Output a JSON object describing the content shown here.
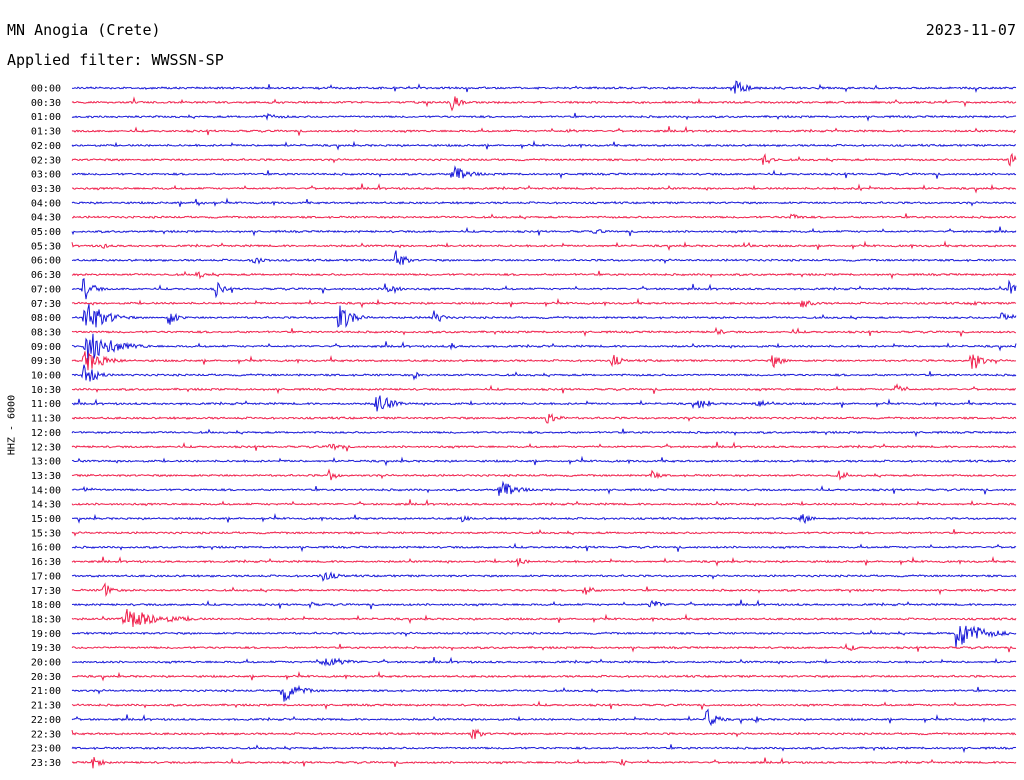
{
  "header": {
    "station": "MN Anogia (Crete)",
    "date": "2023-11-07",
    "filter": "Applied filter: WWSSN-SP"
  },
  "chart_data": {
    "type": "line",
    "ylabel": "HHZ - 6000",
    "row_labels": [
      "00:00",
      "00:30",
      "01:00",
      "01:30",
      "02:00",
      "02:30",
      "03:00",
      "03:30",
      "04:00",
      "04:30",
      "05:00",
      "05:30",
      "06:00",
      "06:30",
      "07:00",
      "07:30",
      "08:00",
      "08:30",
      "09:00",
      "09:30",
      "10:00",
      "10:30",
      "11:00",
      "11:30",
      "12:00",
      "12:30",
      "13:00",
      "13:30",
      "14:00",
      "14:30",
      "15:00",
      "15:30",
      "16:00",
      "16:30",
      "17:00",
      "17:30",
      "18:00",
      "18:30",
      "19:00",
      "19:30",
      "20:00",
      "20:30",
      "21:00",
      "21:30",
      "22:00",
      "22:30",
      "23:00",
      "23:30"
    ],
    "series_colors": [
      "#1818d8",
      "#f0204c"
    ],
    "events": [
      {
        "row": 0,
        "at": 0.7,
        "amp": 9,
        "dur": 0.03
      },
      {
        "row": 1,
        "at": 0.4,
        "amp": 10,
        "dur": 0.015
      },
      {
        "row": 2,
        "at": 0.2,
        "amp": 3,
        "dur": 0.06
      },
      {
        "row": 3,
        "at": 0.52,
        "amp": 2,
        "dur": 0.05
      },
      {
        "row": 5,
        "at": 0.73,
        "amp": 8,
        "dur": 0.02
      },
      {
        "row": 5,
        "at": 0.99,
        "amp": 10,
        "dur": 0.02
      },
      {
        "row": 6,
        "at": 0.4,
        "amp": 9,
        "dur": 0.04
      },
      {
        "row": 7,
        "at": 0.83,
        "amp": 5,
        "dur": 0.01
      },
      {
        "row": 8,
        "at": 0.13,
        "amp": 7,
        "dur": 0.01
      },
      {
        "row": 9,
        "at": 0.76,
        "amp": 5,
        "dur": 0.02
      },
      {
        "row": 10,
        "at": 0.55,
        "amp": 3,
        "dur": 0.03
      },
      {
        "row": 11,
        "at": 0.71,
        "amp": 5,
        "dur": 0.02
      },
      {
        "row": 11,
        "at": 0.03,
        "amp": 5,
        "dur": 0.01
      },
      {
        "row": 12,
        "at": 0.34,
        "amp": 12,
        "dur": 0.02
      },
      {
        "row": 12,
        "at": 0.19,
        "amp": 7,
        "dur": 0.02
      },
      {
        "row": 13,
        "at": 0.13,
        "amp": 5,
        "dur": 0.02
      },
      {
        "row": 14,
        "at": 0.01,
        "amp": 14,
        "dur": 0.02
      },
      {
        "row": 14,
        "at": 0.15,
        "amp": 8,
        "dur": 0.02
      },
      {
        "row": 14,
        "at": 0.33,
        "amp": 10,
        "dur": 0.02
      },
      {
        "row": 14,
        "at": 0.99,
        "amp": 8,
        "dur": 0.02
      },
      {
        "row": 15,
        "at": 0.77,
        "amp": 5,
        "dur": 0.03
      },
      {
        "row": 15,
        "at": 0.95,
        "amp": 3,
        "dur": 0.03
      },
      {
        "row": 16,
        "at": 0.01,
        "amp": 18,
        "dur": 0.05
      },
      {
        "row": 16,
        "at": 0.1,
        "amp": 9,
        "dur": 0.02
      },
      {
        "row": 16,
        "at": 0.28,
        "amp": 16,
        "dur": 0.03
      },
      {
        "row": 16,
        "at": 0.38,
        "amp": 9,
        "dur": 0.02
      },
      {
        "row": 16,
        "at": 0.98,
        "amp": 6,
        "dur": 0.04
      },
      {
        "row": 17,
        "at": 0.68,
        "amp": 4,
        "dur": 0.02
      },
      {
        "row": 17,
        "at": 0.76,
        "amp": 3,
        "dur": 0.02
      },
      {
        "row": 18,
        "at": 0.01,
        "amp": 18,
        "dur": 0.07
      },
      {
        "row": 18,
        "at": 0.4,
        "amp": 4,
        "dur": 0.01
      },
      {
        "row": 19,
        "at": 0.01,
        "amp": 12,
        "dur": 0.05
      },
      {
        "row": 19,
        "at": 0.57,
        "amp": 7,
        "dur": 0.02
      },
      {
        "row": 19,
        "at": 0.74,
        "amp": 8,
        "dur": 0.02
      },
      {
        "row": 19,
        "at": 0.95,
        "amp": 14,
        "dur": 0.02
      },
      {
        "row": 20,
        "at": 0.01,
        "amp": 12,
        "dur": 0.03
      },
      {
        "row": 20,
        "at": 0.36,
        "amp": 5,
        "dur": 0.01
      },
      {
        "row": 21,
        "at": 0.87,
        "amp": 6,
        "dur": 0.02
      },
      {
        "row": 22,
        "at": 0.32,
        "amp": 14,
        "dur": 0.03
      },
      {
        "row": 22,
        "at": 0.66,
        "amp": 8,
        "dur": 0.02
      },
      {
        "row": 22,
        "at": 0.72,
        "amp": 4,
        "dur": 0.06
      },
      {
        "row": 23,
        "at": 0.5,
        "amp": 10,
        "dur": 0.02
      },
      {
        "row": 25,
        "at": 0.27,
        "amp": 4,
        "dur": 0.04
      },
      {
        "row": 27,
        "at": 0.27,
        "amp": 6,
        "dur": 0.02
      },
      {
        "row": 27,
        "at": 0.61,
        "amp": 6,
        "dur": 0.02
      },
      {
        "row": 27,
        "at": 0.81,
        "amp": 6,
        "dur": 0.01
      },
      {
        "row": 28,
        "at": 0.45,
        "amp": 10,
        "dur": 0.04
      },
      {
        "row": 28,
        "at": 0.01,
        "amp": 4,
        "dur": 0.02
      },
      {
        "row": 30,
        "at": 0.41,
        "amp": 4,
        "dur": 0.02
      },
      {
        "row": 30,
        "at": 0.77,
        "amp": 7,
        "dur": 0.02
      },
      {
        "row": 33,
        "at": 0.47,
        "amp": 5,
        "dur": 0.02
      },
      {
        "row": 34,
        "at": 0.26,
        "amp": 6,
        "dur": 0.04
      },
      {
        "row": 35,
        "at": 0.03,
        "amp": 9,
        "dur": 0.02
      },
      {
        "row": 35,
        "at": 0.54,
        "amp": 7,
        "dur": 0.02
      },
      {
        "row": 36,
        "at": 0.61,
        "amp": 6,
        "dur": 0.03
      },
      {
        "row": 36,
        "at": 0.25,
        "amp": 3,
        "dur": 0.02
      },
      {
        "row": 37,
        "at": 0.05,
        "amp": 11,
        "dur": 0.1
      },
      {
        "row": 38,
        "at": 0.93,
        "amp": 16,
        "dur": 0.07
      },
      {
        "row": 39,
        "at": 0.82,
        "amp": 4,
        "dur": 0.02
      },
      {
        "row": 40,
        "at": 0.26,
        "amp": 6,
        "dur": 0.07
      },
      {
        "row": 42,
        "at": 0.22,
        "amp": 12,
        "dur": 0.04
      },
      {
        "row": 44,
        "at": 0.67,
        "amp": 12,
        "dur": 0.02
      },
      {
        "row": 44,
        "at": 0.72,
        "amp": 5,
        "dur": 0.01
      },
      {
        "row": 45,
        "at": 0.42,
        "amp": 9,
        "dur": 0.02
      },
      {
        "row": 47,
        "at": 0.02,
        "amp": 7,
        "dur": 0.02
      },
      {
        "row": 47,
        "at": 0.58,
        "amp": 5,
        "dur": 0.01
      }
    ]
  }
}
